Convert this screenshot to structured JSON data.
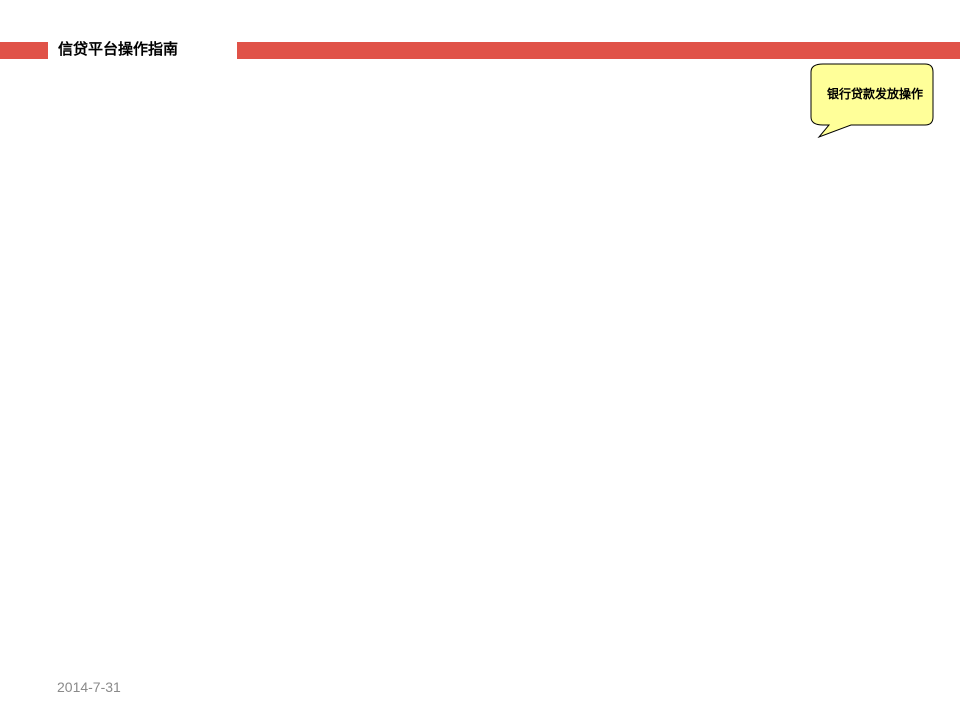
{
  "header": {
    "title": "信贷平台操作指南",
    "accent_color": "#e05248"
  },
  "callout": {
    "text": "银行贷款发放操作",
    "fill_color": "#ffff99",
    "shape": "speech-bubble"
  },
  "footer": {
    "date": "2014-7-31"
  }
}
